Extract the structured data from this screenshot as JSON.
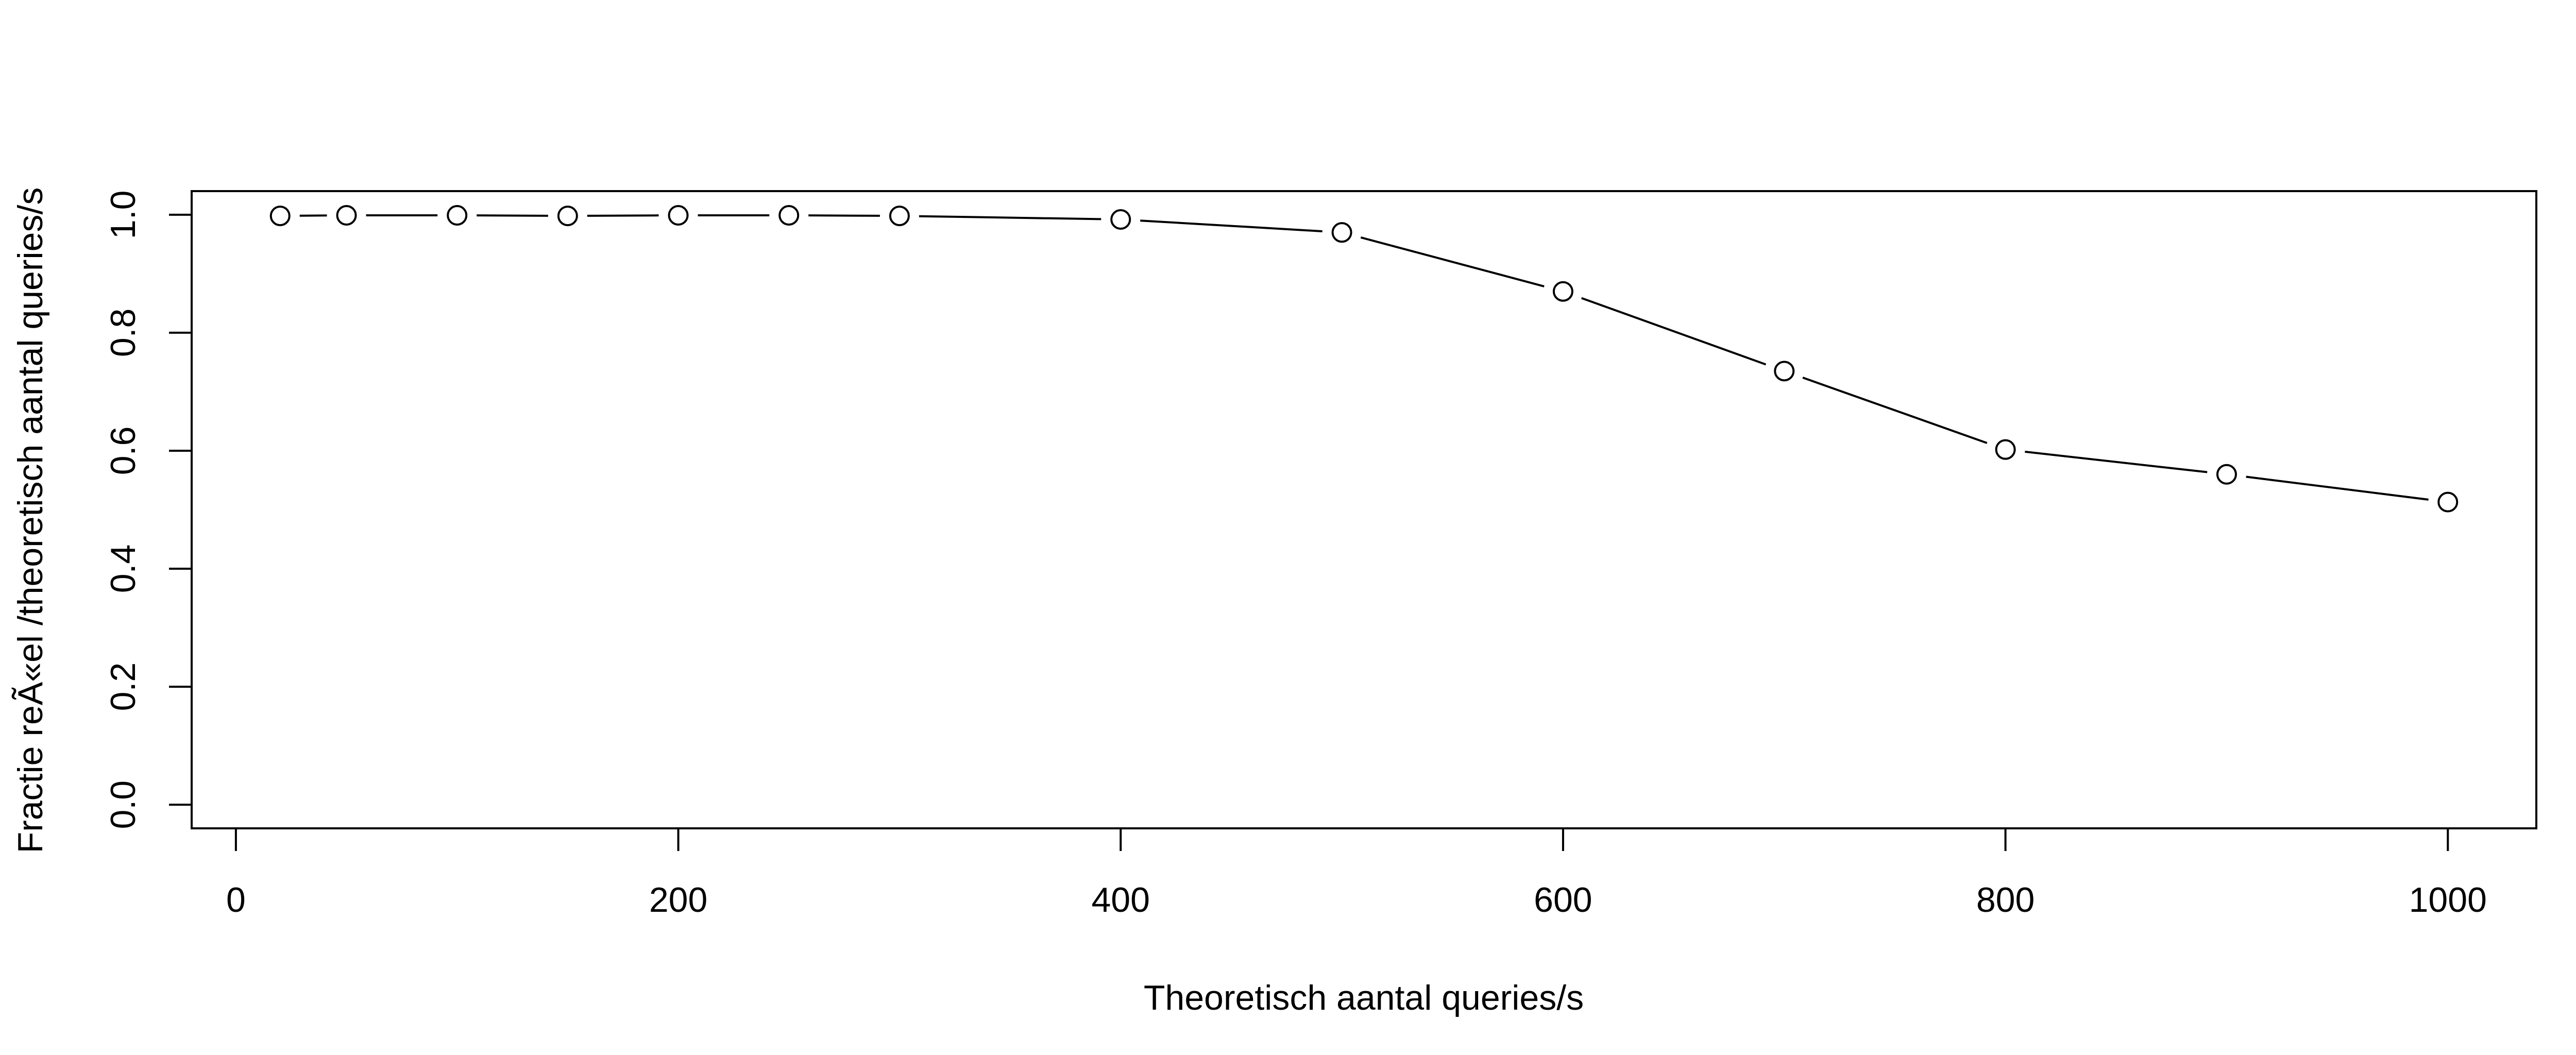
{
  "chart_data": {
    "type": "line",
    "title": "",
    "xlabel": "Theoretisch aantal queries/s",
    "ylabel": "Fractie reÃ«el /theoretisch aantal queries/s",
    "xlim": [
      -20,
      1040
    ],
    "ylim": [
      -0.04,
      1.04
    ],
    "x_ticks": [
      0,
      200,
      400,
      600,
      800,
      1000
    ],
    "y_ticks": [
      0.0,
      0.2,
      0.4,
      0.6,
      0.8,
      1.0
    ],
    "x_tick_labels": [
      "0",
      "200",
      "400",
      "600",
      "800",
      "1000"
    ],
    "y_tick_labels": [
      "0.0",
      "0.2",
      "0.4",
      "0.6",
      "0.8",
      "1.0"
    ],
    "grid": false,
    "legend": false,
    "series": [
      {
        "x": [
          20,
          50,
          100,
          150,
          200,
          250,
          300,
          400,
          500,
          600,
          700,
          800,
          900,
          1000
        ],
        "y": [
          0.998,
          0.999,
          0.999,
          0.998,
          0.999,
          0.999,
          0.998,
          0.992,
          0.97,
          0.87,
          0.735,
          0.602,
          0.56,
          0.513
        ]
      }
    ]
  }
}
